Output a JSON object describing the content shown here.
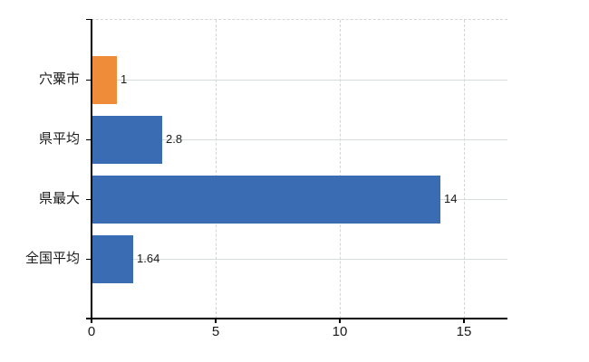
{
  "chart_data": {
    "type": "bar",
    "orientation": "horizontal",
    "title": "",
    "xlabel": "",
    "ylabel": "",
    "categories": [
      "穴粟市",
      "県平均",
      "県最大",
      "全国平均"
    ],
    "values": [
      1,
      2.8,
      14,
      1.64
    ],
    "value_labels": [
      "1",
      "2.8",
      "14",
      "1.64"
    ],
    "bar_colors": [
      "#ee8c3a",
      "#3a6cb3",
      "#3a6cb3",
      "#3a6cb3"
    ],
    "highlight_category": "穴粟市",
    "x_ticks": [
      "0",
      "5",
      "10",
      "15"
    ],
    "x_tick_values": [
      0,
      5,
      10,
      15
    ],
    "xlim": [
      0,
      16.75
    ],
    "grid": "on",
    "legend": "none",
    "colors": {
      "bar_default": "#3a6cb3",
      "bar_highlight": "#ee8c3a",
      "axis": "#000000",
      "grid_vertical": "#d4d4d4",
      "grid_horizontal": "#d7ddd7",
      "text": "#1a1a1a",
      "background": "#ffffff"
    }
  }
}
